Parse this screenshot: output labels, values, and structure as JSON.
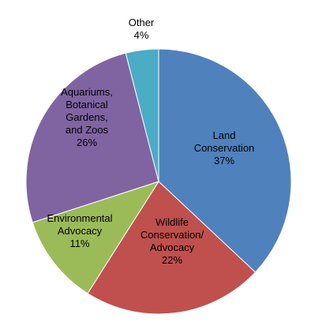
{
  "chart_data": {
    "type": "pie",
    "slices": [
      {
        "label_lines": [
          "Land",
          "Conservation"
        ],
        "value_label": "37%",
        "value": 37,
        "color": "#4F81BD"
      },
      {
        "label_lines": [
          "Wildlife",
          "Conservation/",
          "Advocacy"
        ],
        "value_label": "22%",
        "value": 22,
        "color": "#C0504D"
      },
      {
        "label_lines": [
          "Environmental",
          "Advocacy"
        ],
        "value_label": "11%",
        "value": 11,
        "color": "#9BBB59"
      },
      {
        "label_lines": [
          "Aquariums,",
          "Botanical",
          "Gardens,",
          "and Zoos"
        ],
        "value_label": "26%",
        "value": 26,
        "color": "#8064A2"
      },
      {
        "label_lines": [
          "Other"
        ],
        "value_label": "4%",
        "value": 4,
        "color": "#4BACC6"
      }
    ],
    "start": "12 o'clock",
    "direction": "clockwise",
    "legend": "none"
  }
}
